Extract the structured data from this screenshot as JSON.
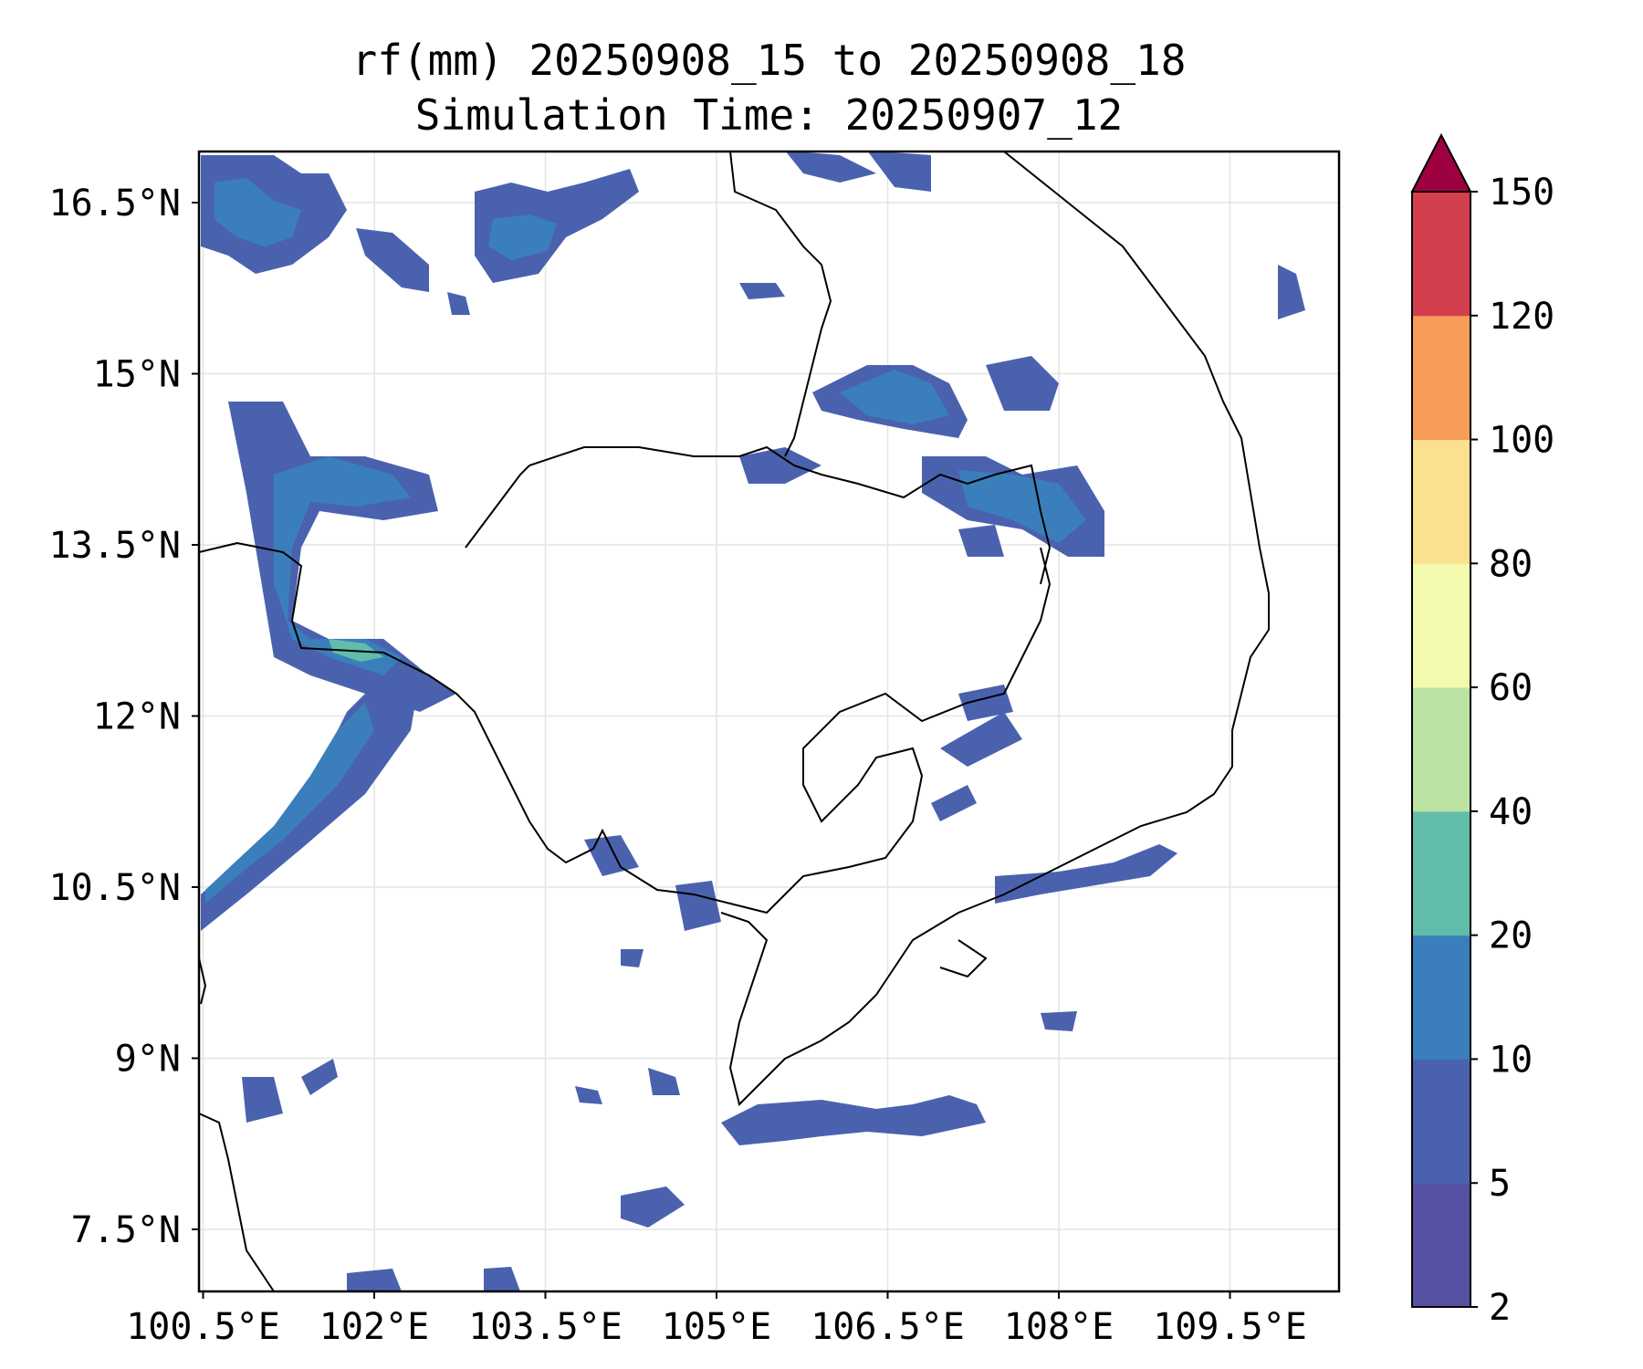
{
  "title": {
    "line1": "rf(mm) 20250908_15 to 20250908_18",
    "line2": "Simulation Time: 20250907_12"
  },
  "map": {
    "lon_range": [
      100.0,
      106.6
    ],
    "lat_range": [
      7.0,
      13.6
    ],
    "lon_ticks": [
      {
        "value": 100.5,
        "label": "100.5°E"
      },
      {
        "value": 102.0,
        "label": "102°E"
      },
      {
        "value": 103.5,
        "label": "103.5°E"
      },
      {
        "value": 105.0,
        "label": "105°E"
      },
      {
        "value": 106.5,
        "label": "106.5°E"
      },
      {
        "value": 108.0,
        "label": "108°E"
      },
      {
        "value": 109.5,
        "label": "109.5°E"
      }
    ],
    "lat_ticks": [
      {
        "value": 16.5,
        "label": "16.5°N"
      },
      {
        "value": 15.0,
        "label": "15°N"
      },
      {
        "value": 13.5,
        "label": "13.5°N"
      },
      {
        "value": 12.0,
        "label": "12°N"
      },
      {
        "value": 10.5,
        "label": "10.5°N"
      },
      {
        "value": 9.0,
        "label": "9°N"
      },
      {
        "value": 7.5,
        "label": "7.5°N"
      }
    ],
    "gridlines": true
  },
  "colorbar": {
    "levels": [
      {
        "label": "2",
        "color": "#5651a3"
      },
      {
        "label": "5",
        "color": "#4a62ae"
      },
      {
        "label": "10",
        "color": "#3a7fbb"
      },
      {
        "label": "20",
        "color": "#62bcaa"
      },
      {
        "label": "40",
        "color": "#bce3a1"
      },
      {
        "label": "60",
        "color": "#f3faae"
      },
      {
        "label": "80",
        "color": "#fbe08f"
      },
      {
        "label": "100",
        "color": "#f89c5a"
      },
      {
        "label": "120",
        "color": "#d43f4e"
      },
      {
        "label": "150",
        "color": "#9e0142"
      }
    ],
    "extend": "max"
  }
}
